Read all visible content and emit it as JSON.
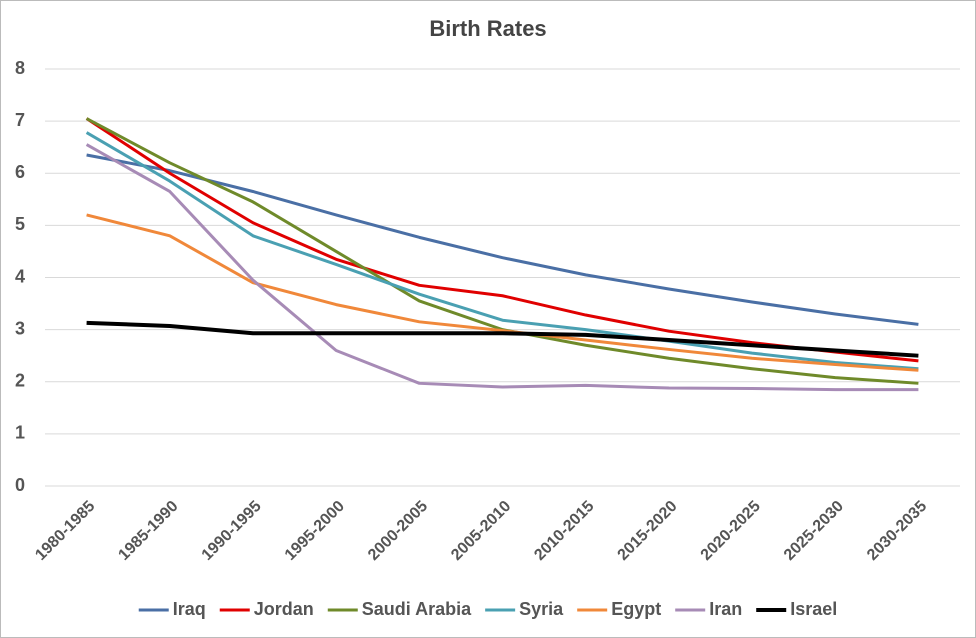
{
  "chart_data": {
    "type": "line",
    "title": "Birth Rates",
    "categories": [
      "1980-1985",
      "1985-1990",
      "1990-1995",
      "1995-2000",
      "2000-2005",
      "2005-2010",
      "2010-2015",
      "2015-2020",
      "2020-2025",
      "2025-2030",
      "2030-2035"
    ],
    "series": [
      {
        "name": "Iraq",
        "color": "#4a6fa5",
        "values": [
          6.35,
          6.05,
          5.65,
          5.2,
          4.77,
          4.38,
          4.05,
          3.78,
          3.53,
          3.3,
          3.1
        ]
      },
      {
        "name": "Jordan",
        "color": "#e00000",
        "values": [
          7.05,
          6.0,
          5.05,
          4.35,
          3.85,
          3.65,
          3.28,
          2.97,
          2.75,
          2.57,
          2.4
        ]
      },
      {
        "name": "Saudi Arabia",
        "color": "#6f8a2a",
        "values": [
          7.05,
          6.2,
          5.45,
          4.5,
          3.55,
          3.0,
          2.7,
          2.45,
          2.25,
          2.08,
          1.97
        ]
      },
      {
        "name": "Syria",
        "color": "#4aa0b2",
        "values": [
          6.78,
          5.85,
          4.8,
          4.25,
          3.68,
          3.18,
          3.0,
          2.78,
          2.55,
          2.37,
          2.25
        ]
      },
      {
        "name": "Egypt",
        "color": "#f0883a",
        "values": [
          5.2,
          4.8,
          3.9,
          3.48,
          3.15,
          2.98,
          2.8,
          2.62,
          2.45,
          2.33,
          2.22
        ]
      },
      {
        "name": "Iran",
        "color": "#a78bb6",
        "values": [
          6.55,
          5.65,
          3.95,
          2.6,
          1.97,
          1.9,
          1.93,
          1.88,
          1.87,
          1.85,
          1.85
        ]
      },
      {
        "name": "Israel",
        "color": "#000000",
        "values": [
          3.13,
          3.07,
          2.93,
          2.93,
          2.93,
          2.93,
          2.9,
          2.8,
          2.7,
          2.6,
          2.5
        ]
      }
    ],
    "ylim": [
      0,
      8
    ],
    "yticks": [
      0,
      1,
      2,
      3,
      4,
      5,
      6,
      7,
      8
    ],
    "grid": true,
    "legend": "bottom"
  }
}
